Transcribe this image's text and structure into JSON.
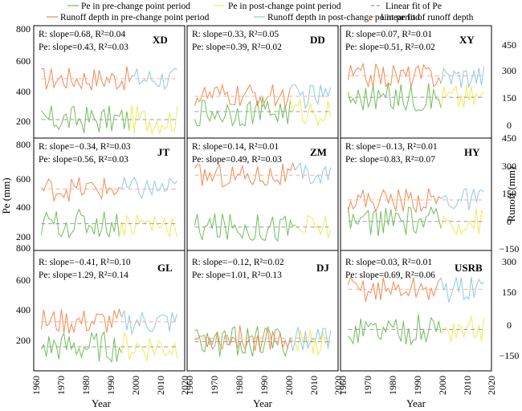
{
  "legend": [
    {
      "label": "Pe in pre-change point period",
      "color": "#6fbf5a",
      "style": "solid"
    },
    {
      "label": "Pe in post-change point period",
      "color": "#f2e95a",
      "style": "solid"
    },
    {
      "label": "Linear fit of Pe",
      "color": "#999999",
      "style": "dashed"
    },
    {
      "label": "Runoff depth in pre-change point period",
      "color": "#f08a52",
      "style": "solid"
    },
    {
      "label": "Runoff depth in post-change point period",
      "color": "#8ec9e6",
      "style": "solid"
    },
    {
      "label": "Linear fit of runoff depth",
      "color": "#f5b08c",
      "style": "dashed"
    }
  ],
  "axes": {
    "xlabel": "Year",
    "ylabel_left": "Pe (mm)",
    "ylabel_right": "Runoff (mm)",
    "xticks": [
      "1960",
      "1970",
      "1980",
      "1990",
      "2000",
      "2010",
      "2020"
    ],
    "left_ticks": [
      [
        "800",
        "600",
        "400",
        "200"
      ],
      [
        "800",
        "600",
        "400",
        "200"
      ],
      [
        "800",
        "600",
        "400",
        "200"
      ]
    ],
    "right_ticks": [
      [
        "450",
        "300",
        "150",
        "0"
      ],
      [
        "450",
        "300",
        "150",
        "0",
        "−150"
      ],
      [
        "300",
        "150",
        "0",
        "−150"
      ]
    ]
  },
  "chart_data": [
    {
      "site": "XD",
      "type": "line",
      "R": "R: slope=0.68, R²=0.04",
      "Pe": "Pe: slope=0.43, R²=0.03",
      "runoff_level": 470,
      "pe_level": 215,
      "change_year": 1998,
      "xlim": [
        1960,
        2020
      ],
      "ylim": [
        100,
        800
      ]
    },
    {
      "site": "DD",
      "type": "line",
      "R": "R: slope=0.33, R²=0.05",
      "Pe": "Pe: slope=0.39, R²=0.02",
      "runoff_level": 360,
      "pe_level": 265,
      "change_year": 2001,
      "xlim": [
        1960,
        2020
      ],
      "ylim": [
        100,
        800
      ]
    },
    {
      "site": "XY",
      "type": "line",
      "R": "R: slope=0.07, R²=0.01",
      "Pe": "Pe: slope=0.51, R²=0.02",
      "runoff_level": 255,
      "pe_level": 150,
      "change_year": 2000,
      "xlim": [
        1960,
        2020
      ],
      "ylim": [
        -50,
        500
      ]
    },
    {
      "site": "JT",
      "type": "line",
      "R": "R: slope=−0.34, R²=0.03",
      "Pe": "Pe: slope=0.56, R²=0.03",
      "runoff_level": 505,
      "pe_level": 305,
      "change_year": 1994,
      "xlim": [
        1960,
        2020
      ],
      "ylim": [
        150,
        800
      ]
    },
    {
      "site": "ZM",
      "type": "line",
      "R": "R: slope=0.14, R²=0.01",
      "Pe": "Pe: slope=0.49, R²=0.03",
      "runoff_level": 585,
      "pe_level": 285,
      "change_year": 2003,
      "xlim": [
        1960,
        2020
      ],
      "ylim": [
        150,
        800
      ]
    },
    {
      "site": "HY",
      "type": "line",
      "R": "R: slope=−0.13, R²=0.01",
      "Pe": "Pe: slope=0.83, R²=0.07",
      "runoff_level": 120,
      "pe_level": 5,
      "change_year": 2000,
      "xlim": [
        1960,
        2020
      ],
      "ylim": [
        -150,
        450
      ]
    },
    {
      "site": "GL",
      "type": "line",
      "R": "R: slope=−0.41, R²=0.10",
      "Pe": "Pe: slope=1.29, R²=0.14",
      "runoff_level": 385,
      "pe_level": 240,
      "change_year": 1995,
      "xlim": [
        1960,
        2020
      ],
      "ylim": [
        100,
        800
      ]
    },
    {
      "site": "DJ",
      "type": "line",
      "R": "R: slope=−0.12, R²=0.02",
      "Pe": "Pe: slope=1.01, R²=0.13",
      "runoff_level": 290,
      "pe_level": 270,
      "change_year": 2001,
      "xlim": [
        1960,
        2020
      ],
      "ylim": [
        100,
        800
      ]
    },
    {
      "site": "USRB",
      "type": "line",
      "R": "R: slope=0.03, R²=0.01",
      "Pe": "Pe: slope=0.69, R²=0.06",
      "runoff_level": 155,
      "pe_level": 5,
      "change_year": 2000,
      "xlim": [
        1960,
        2020
      ],
      "ylim": [
        -150,
        300
      ]
    }
  ]
}
